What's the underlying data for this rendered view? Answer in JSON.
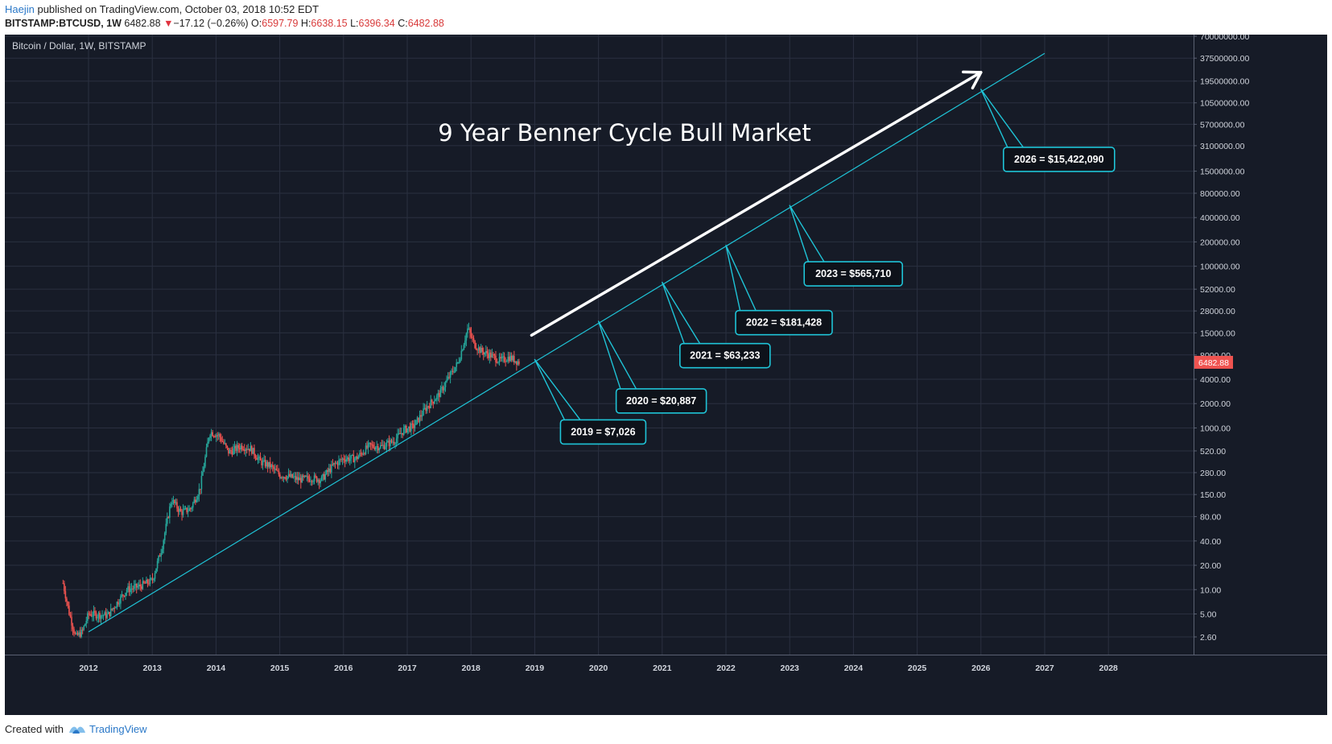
{
  "header": {
    "author": "Haejin",
    "published": " published on TradingView.com, October 03, 2018 10:52 EDT",
    "symbol": "BITSTAMP:BTCUSD, 1W",
    "last": "6482.88",
    "change": "−17.12 (−0.26%)",
    "o_label": "O:",
    "o_value": "6597.79",
    "h_label": "H:",
    "h_value": "6638.15",
    "l_label": "L:",
    "l_value": "6396.34",
    "c_label": "C:",
    "c_value": "6482.88"
  },
  "footer": {
    "created_with": "Created with",
    "brand": "TradingView"
  },
  "colors": {
    "background": "#161b27",
    "grid": "#2a3040",
    "trendline": "#1fc3d6",
    "arrow": "#ffffff",
    "up_candle": "#26a69a",
    "down_candle": "#ef5350",
    "price_tag": "#ef5350"
  },
  "chart_data": {
    "type": "candlestick",
    "legend": "Bitcoin / Dollar, 1W, BITSTAMP",
    "title": "9 Year Benner Cycle Bull Market",
    "y_scale": "log",
    "grid": true,
    "x_ticks": [
      "2012",
      "2013",
      "2014",
      "2015",
      "2016",
      "2017",
      "2018",
      "2019",
      "2020",
      "2021",
      "2022",
      "2023",
      "2024",
      "2025",
      "2026",
      "2027",
      "2028"
    ],
    "y_ticks": [
      "70000000.00",
      "37500000.00",
      "19500000.00",
      "10500000.00",
      "5700000.00",
      "3100000.00",
      "1500000.00",
      "800000.00",
      "400000.00",
      "200000.00",
      "100000.00",
      "52000.00",
      "28000.00",
      "15000.00",
      "8000.00",
      "4000.00",
      "2000.00",
      "1000.00",
      "520.00",
      "280.00",
      "150.00",
      "80.00",
      "40.00",
      "20.00",
      "10.00",
      "5.00",
      "2.60"
    ],
    "last_price": "6482.88",
    "price_series": [
      [
        2011.6,
        12
      ],
      [
        2011.7,
        5
      ],
      [
        2011.8,
        2.6
      ],
      [
        2011.9,
        3
      ],
      [
        2012.0,
        5
      ],
      [
        2012.3,
        4.8
      ],
      [
        2012.6,
        10
      ],
      [
        2012.8,
        11
      ],
      [
        2013.0,
        13
      ],
      [
        2013.15,
        33
      ],
      [
        2013.3,
        130
      ],
      [
        2013.45,
        90
      ],
      [
        2013.6,
        100
      ],
      [
        2013.75,
        180
      ],
      [
        2013.9,
        900
      ],
      [
        2014.05,
        800
      ],
      [
        2014.2,
        500
      ],
      [
        2014.4,
        600
      ],
      [
        2014.55,
        550
      ],
      [
        2014.7,
        380
      ],
      [
        2014.85,
        340
      ],
      [
        2015.0,
        260
      ],
      [
        2015.15,
        250
      ],
      [
        2015.3,
        230
      ],
      [
        2015.5,
        240
      ],
      [
        2015.65,
        230
      ],
      [
        2015.85,
        350
      ],
      [
        2016.0,
        420
      ],
      [
        2016.2,
        420
      ],
      [
        2016.4,
        600
      ],
      [
        2016.6,
        590
      ],
      [
        2016.8,
        700
      ],
      [
        2016.95,
        950
      ],
      [
        2017.1,
        1050
      ],
      [
        2017.3,
        1800
      ],
      [
        2017.5,
        2600
      ],
      [
        2017.65,
        4200
      ],
      [
        2017.8,
        6500
      ],
      [
        2017.95,
        17000
      ],
      [
        2018.05,
        11000
      ],
      [
        2018.15,
        9000
      ],
      [
        2018.3,
        8000
      ],
      [
        2018.45,
        6800
      ],
      [
        2018.6,
        7500
      ],
      [
        2018.76,
        6482.88
      ]
    ],
    "trendline": {
      "from": [
        2012.0,
        3
      ],
      "to": [
        2027.0,
        43000000
      ]
    },
    "arrow": {
      "from": [
        2018.95,
        14000
      ],
      "to": [
        2026.0,
        25000000
      ]
    },
    "annotations": [
      {
        "label": "2019 = $7,026",
        "anchor": [
          2019.0,
          7026
        ]
      },
      {
        "label": "2020 = $20,887",
        "anchor": [
          2020.0,
          20887
        ]
      },
      {
        "label": "2021 = $63,233",
        "anchor": [
          2021.0,
          63233
        ]
      },
      {
        "label": "2022 = $181,428",
        "anchor": [
          2022.0,
          181428
        ]
      },
      {
        "label": "2023 = $565,710",
        "anchor": [
          2023.0,
          565710
        ]
      },
      {
        "label": "2026 = $15,422,090",
        "anchor": [
          2026.0,
          15422090
        ]
      }
    ]
  }
}
